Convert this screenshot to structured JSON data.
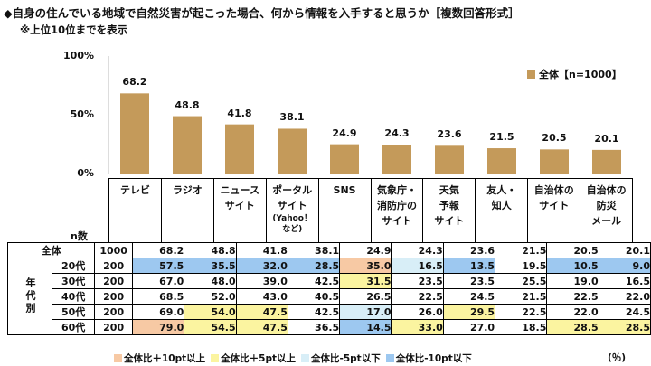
{
  "title": "◆自身の住んでいる地域で自然災害が起こった場合、何から情報を入手すると思うか［複数回答形式］",
  "subtitle": "※上位10位までを表示",
  "colors": {
    "bar": "#c49a5a",
    "orange": "#f7c9a4",
    "yellow": "#fbf4a0",
    "lightblue": "#d8eef7",
    "blue": "#9dc8f0"
  },
  "chart_data": {
    "type": "bar",
    "ylim": [
      0,
      100
    ],
    "yticks": [
      "0%",
      "50%",
      "100%"
    ],
    "legend": "全体【n=1000】",
    "legend_position": "top-right",
    "categories": [
      [
        "テレビ"
      ],
      [
        "ラジオ"
      ],
      [
        "ニュース",
        "サイト"
      ],
      [
        "ポータル",
        "サイト",
        "(Yahoo！",
        "など)"
      ],
      [
        "SNS"
      ],
      [
        "気象庁・",
        "消防庁の",
        "サイト"
      ],
      [
        "天気",
        "予報",
        "サイト"
      ],
      [
        "友人・",
        "知人"
      ],
      [
        "自治体の",
        "サイト"
      ],
      [
        "自治体の",
        "防災",
        "メール"
      ]
    ],
    "values": [
      68.2,
      48.8,
      41.8,
      38.1,
      24.9,
      24.3,
      23.6,
      21.5,
      20.5,
      20.1
    ]
  },
  "table": {
    "n_header": "n数",
    "group_label": "年代別",
    "total_row": {
      "label": "全体",
      "n": "1000",
      "values": [
        "68.2",
        "48.8",
        "41.8",
        "38.1",
        "24.9",
        "24.3",
        "23.6",
        "21.5",
        "20.5",
        "20.1"
      ]
    },
    "rows": [
      {
        "label": "20代",
        "n": "200",
        "values": [
          "57.5",
          "35.5",
          "32.0",
          "28.5",
          "35.0",
          "16.5",
          "13.5",
          "19.5",
          "10.5",
          "9.0"
        ],
        "highlights": [
          "blue",
          "blue",
          "blue",
          "blue",
          "orange",
          "lightblue",
          "blue",
          "",
          "blue",
          "blue"
        ]
      },
      {
        "label": "30代",
        "n": "200",
        "values": [
          "67.0",
          "48.0",
          "39.0",
          "42.5",
          "31.5",
          "23.5",
          "23.5",
          "25.5",
          "19.0",
          "16.5"
        ],
        "highlights": [
          "",
          "",
          "",
          "",
          "yellow",
          "",
          "",
          "",
          "",
          ""
        ]
      },
      {
        "label": "40代",
        "n": "200",
        "values": [
          "68.5",
          "52.0",
          "43.0",
          "40.5",
          "26.5",
          "22.5",
          "24.5",
          "21.5",
          "22.5",
          "22.0"
        ],
        "highlights": [
          "",
          "",
          "",
          "",
          "",
          "",
          "",
          "",
          "",
          ""
        ]
      },
      {
        "label": "50代",
        "n": "200",
        "values": [
          "69.0",
          "54.0",
          "47.5",
          "42.5",
          "17.0",
          "26.0",
          "29.5",
          "22.5",
          "22.0",
          "24.5"
        ],
        "highlights": [
          "",
          "yellow",
          "yellow",
          "",
          "lightblue",
          "",
          "yellow",
          "",
          "",
          ""
        ]
      },
      {
        "label": "60代",
        "n": "200",
        "values": [
          "79.0",
          "54.5",
          "47.5",
          "36.5",
          "14.5",
          "33.0",
          "27.0",
          "18.5",
          "28.5",
          "28.5"
        ],
        "highlights": [
          "orange",
          "yellow",
          "yellow",
          "",
          "blue",
          "yellow",
          "",
          "",
          "yellow",
          "yellow"
        ]
      }
    ]
  },
  "key": [
    {
      "label": "全体比＋10pt以上",
      "color": "orange"
    },
    {
      "label": "全体比＋5pt以上",
      "color": "yellow"
    },
    {
      "label": "全体比-5pt以下",
      "color": "lightblue"
    },
    {
      "label": "全体比-10pt以下",
      "color": "blue"
    }
  ],
  "unit": "(％)"
}
